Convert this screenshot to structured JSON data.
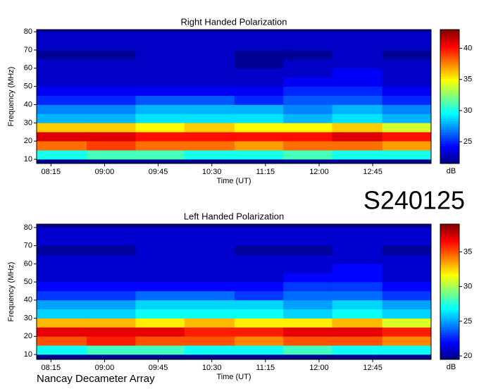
{
  "chart_data": [
    {
      "type": "heatmap",
      "title": "Right Handed Polarization",
      "xlabel": "Time (UT)",
      "ylabel": "Frequency (MHz)",
      "colorbar_label": "dB",
      "xlim": [
        483,
        814
      ],
      "xticks": [
        {
          "value": 495,
          "label": "08:15"
        },
        {
          "value": 540,
          "label": "09:00"
        },
        {
          "value": 585,
          "label": "09:45"
        },
        {
          "value": 630,
          "label": "10:30"
        },
        {
          "value": 675,
          "label": "11:15"
        },
        {
          "value": 720,
          "label": "12:00"
        },
        {
          "value": 765,
          "label": "12:45"
        }
      ],
      "ylim": [
        7.7,
        81.2
      ],
      "yticks": [
        10,
        20,
        30,
        40,
        50,
        60,
        70,
        80
      ],
      "clim": [
        21.5,
        43
      ],
      "cticks": [
        25,
        30,
        35,
        40
      ],
      "xbins": [
        483,
        525,
        566,
        607,
        649,
        690,
        731,
        773,
        814
      ],
      "ybins": [
        10,
        15,
        20,
        25,
        30,
        35,
        40,
        45,
        50,
        55,
        60,
        65,
        70,
        75,
        80
      ],
      "values": [
        [
          30,
          31,
          31,
          30,
          30,
          31,
          30,
          30
        ],
        [
          38,
          39,
          38,
          38,
          37,
          38,
          38,
          37
        ],
        [
          41,
          41,
          40,
          40,
          40,
          40,
          41,
          40
        ],
        [
          36,
          36,
          35,
          36,
          35,
          35,
          36,
          34
        ],
        [
          28,
          28,
          29,
          29,
          29,
          28,
          29,
          28
        ],
        [
          27,
          27,
          28,
          28,
          28,
          27,
          28,
          27
        ],
        [
          25,
          25,
          26,
          26,
          25,
          26,
          26,
          25
        ],
        [
          24,
          24,
          24,
          24,
          24,
          25,
          25,
          24
        ],
        [
          23,
          23,
          23,
          23,
          23,
          24,
          24,
          23
        ],
        [
          23,
          23,
          23,
          23,
          23,
          23,
          24,
          23
        ],
        [
          23,
          23,
          23,
          23,
          22,
          23,
          23,
          23
        ],
        [
          22,
          22,
          23,
          23,
          22,
          22,
          23,
          22
        ],
        [
          23,
          23,
          23,
          23,
          23,
          23,
          23,
          23
        ],
        [
          23,
          23,
          23,
          23,
          23,
          23,
          23,
          23
        ]
      ]
    },
    {
      "type": "heatmap",
      "title": "Left Handed Polarization",
      "xlabel": "Time (UT)",
      "ylabel": "Frequency (MHz)",
      "colorbar_label": "dB",
      "xlim": [
        483,
        814
      ],
      "xticks": [
        {
          "value": 495,
          "label": "08:15"
        },
        {
          "value": 540,
          "label": "09:00"
        },
        {
          "value": 585,
          "label": "09:45"
        },
        {
          "value": 630,
          "label": "10:30"
        },
        {
          "value": 675,
          "label": "11:15"
        },
        {
          "value": 720,
          "label": "12:00"
        },
        {
          "value": 765,
          "label": "12:45"
        }
      ],
      "ylim": [
        7.3,
        81.9
      ],
      "yticks": [
        10,
        20,
        30,
        40,
        50,
        60,
        70,
        80
      ],
      "clim": [
        19.5,
        39
      ],
      "cticks": [
        20,
        25,
        30,
        35
      ],
      "xbins": [
        483,
        525,
        566,
        607,
        649,
        690,
        731,
        773,
        814
      ],
      "ybins": [
        10,
        15,
        20,
        25,
        30,
        35,
        40,
        45,
        50,
        55,
        60,
        65,
        70,
        75,
        80
      ],
      "values": [
        [
          27,
          28,
          28,
          27,
          27,
          28,
          27,
          27
        ],
        [
          35,
          36,
          35,
          35,
          34,
          35,
          35,
          34
        ],
        [
          37,
          37,
          37,
          36,
          36,
          37,
          37,
          36
        ],
        [
          33,
          33,
          32,
          33,
          32,
          32,
          33,
          31
        ],
        [
          26,
          26,
          27,
          27,
          27,
          26,
          27,
          26
        ],
        [
          25,
          25,
          26,
          26,
          26,
          25,
          26,
          25
        ],
        [
          23,
          23,
          24,
          24,
          23,
          24,
          24,
          23
        ],
        [
          22,
          22,
          22,
          22,
          22,
          23,
          23,
          22
        ],
        [
          21,
          21,
          21,
          21,
          21,
          22,
          22,
          21
        ],
        [
          21,
          21,
          21,
          21,
          21,
          21,
          22,
          21
        ],
        [
          21,
          21,
          21,
          21,
          21,
          21,
          21,
          21
        ],
        [
          20,
          20,
          21,
          21,
          20,
          20,
          21,
          20
        ],
        [
          21,
          21,
          21,
          21,
          21,
          21,
          21,
          21
        ],
        [
          21,
          21,
          21,
          21,
          21,
          21,
          21,
          21
        ]
      ]
    }
  ],
  "page_label": "S240125",
  "footer": "Nancay Decameter Array"
}
